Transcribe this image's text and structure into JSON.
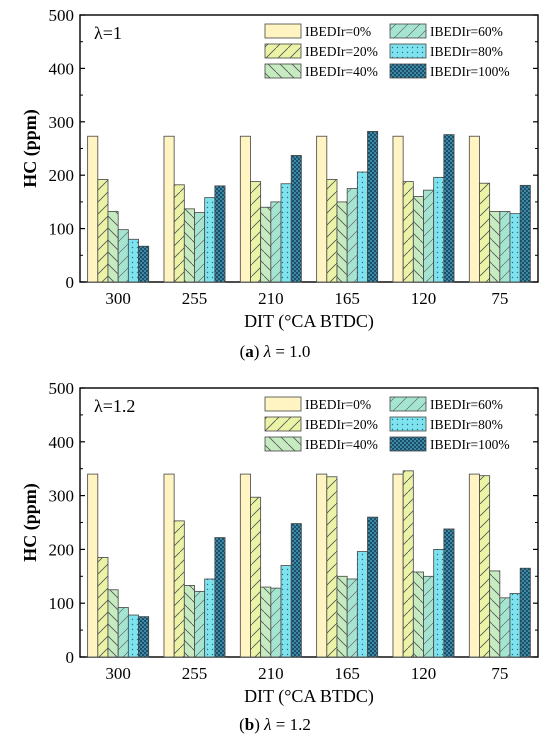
{
  "chart_data": [
    {
      "type": "bar",
      "panel_text": "λ=1",
      "caption": {
        "letter": "a",
        "symbol": "λ",
        "rest": " = 1.0"
      },
      "xlabel": "DIT (°CA BTDC)",
      "ylabel": "HC (ppm)",
      "ylim": [
        0,
        500
      ],
      "yticks": [
        "0",
        "100",
        "200",
        "300",
        "400",
        "500"
      ],
      "categories": [
        "300",
        "255",
        "210",
        "165",
        "120",
        "75"
      ],
      "legend_position": "top-right",
      "series": [
        {
          "name": "IBEDIr=0%",
          "pattern": "plain",
          "values": [
            273,
            273,
            273,
            273,
            273,
            273
          ]
        },
        {
          "name": "IBEDIr=20%",
          "pattern": "diag-fwd",
          "values": [
            192,
            182,
            188,
            192,
            188,
            185
          ]
        },
        {
          "name": "IBEDIr=40%",
          "pattern": "diag-back",
          "values": [
            132,
            137,
            140,
            150,
            160,
            132
          ]
        },
        {
          "name": "IBEDIr=60%",
          "pattern": "cross",
          "values": [
            98,
            130,
            150,
            175,
            172,
            132
          ]
        },
        {
          "name": "IBEDIr=80%",
          "pattern": "dots",
          "values": [
            80,
            158,
            184,
            206,
            196,
            128
          ]
        },
        {
          "name": "IBEDIr=100%",
          "pattern": "dense",
          "values": [
            67,
            180,
            237,
            282,
            276,
            181
          ]
        }
      ]
    },
    {
      "type": "bar",
      "panel_text": "λ=1.2",
      "caption": {
        "letter": "b",
        "symbol": "λ",
        "rest": " = 1.2"
      },
      "xlabel": "DIT (°CA BTDC)",
      "ylabel": "HC (ppm)",
      "ylim": [
        0,
        500
      ],
      "yticks": [
        "0",
        "100",
        "200",
        "300",
        "400",
        "500"
      ],
      "categories": [
        "300",
        "255",
        "210",
        "165",
        "120",
        "75"
      ],
      "legend_position": "top-right",
      "series": [
        {
          "name": "IBEDIr=0%",
          "pattern": "plain",
          "values": [
            340,
            340,
            340,
            340,
            340,
            340
          ]
        },
        {
          "name": "IBEDIr=20%",
          "pattern": "diag-fwd",
          "values": [
            185,
            253,
            297,
            335,
            346,
            337
          ]
        },
        {
          "name": "IBEDIr=40%",
          "pattern": "diag-back",
          "values": [
            125,
            133,
            130,
            150,
            158,
            160
          ]
        },
        {
          "name": "IBEDIr=60%",
          "pattern": "cross",
          "values": [
            92,
            122,
            128,
            145,
            150,
            110
          ]
        },
        {
          "name": "IBEDIr=80%",
          "pattern": "dots",
          "values": [
            78,
            145,
            170,
            196,
            200,
            118
          ]
        },
        {
          "name": "IBEDIr=100%",
          "pattern": "dense",
          "values": [
            75,
            222,
            248,
            260,
            238,
            165
          ]
        }
      ]
    }
  ],
  "colors": {
    "series_fill": [
      "#fff4c2",
      "#eaf3a6",
      "#c6ebc0",
      "#a6e4d2",
      "#7fe3ef",
      "#3d8aa8"
    ],
    "axis": "#000000"
  }
}
